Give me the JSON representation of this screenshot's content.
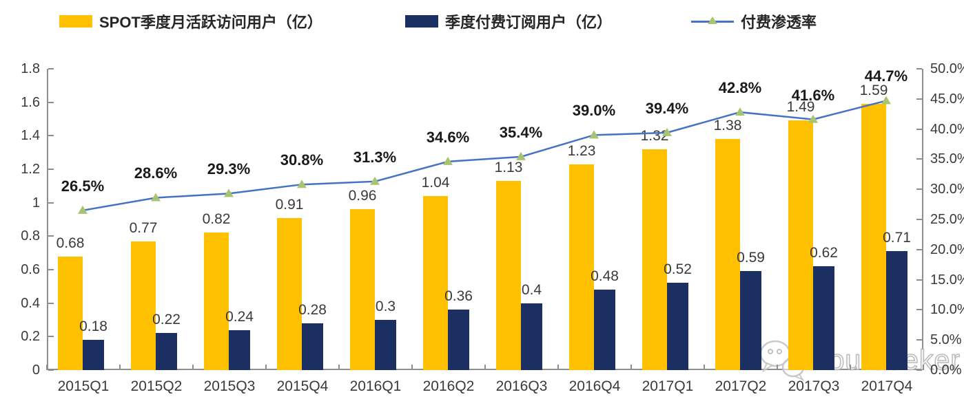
{
  "legend": [
    {
      "label": "SPOT季度月活跃访问用户（亿）",
      "color": "#FFC000",
      "type": "bar"
    },
    {
      "label": "季度付费订阅用户（亿）",
      "color": "#1B2F63",
      "type": "bar"
    },
    {
      "label": "付费渗透率",
      "type": "line",
      "line_color": "#4472C4",
      "marker_color": "#A9C470"
    }
  ],
  "chart_data": {
    "type": "combo-bar-line",
    "categories": [
      "2015Q1",
      "2015Q2",
      "2015Q3",
      "2015Q4",
      "2016Q1",
      "2016Q2",
      "2016Q3",
      "2016Q4",
      "2017Q1",
      "2017Q2",
      "2017Q3",
      "2017Q4"
    ],
    "series": [
      {
        "name": "SPOT季度月活跃访问用户（亿）",
        "type": "bar",
        "axis": "left",
        "color": "#FFC000",
        "values": [
          0.68,
          0.77,
          0.82,
          0.91,
          0.96,
          1.04,
          1.13,
          1.23,
          1.32,
          1.38,
          1.49,
          1.59
        ],
        "labels": [
          "0.68",
          "0.77",
          "0.82",
          "0.91",
          "0.96",
          "1.04",
          "1.13",
          "1.23",
          "1.32",
          "1.38",
          "1.49",
          "1.59"
        ]
      },
      {
        "name": "季度付费订阅用户（亿）",
        "type": "bar",
        "axis": "left",
        "color": "#1B2F63",
        "values": [
          0.18,
          0.22,
          0.24,
          0.28,
          0.3,
          0.36,
          0.4,
          0.48,
          0.52,
          0.59,
          0.62,
          0.71
        ],
        "labels": [
          "0.18",
          "0.22",
          "0.24",
          "0.28",
          "0.3",
          "0.36",
          "0.4",
          "0.48",
          "0.52",
          "0.59",
          "0.62",
          "0.71"
        ]
      },
      {
        "name": "付费渗透率",
        "type": "line",
        "axis": "right",
        "color": "#4472C4",
        "marker_color": "#A9C470",
        "values": [
          26.5,
          28.6,
          29.3,
          30.8,
          31.3,
          34.6,
          35.4,
          39.0,
          39.4,
          42.8,
          41.6,
          44.7
        ],
        "labels": [
          "26.5%",
          "28.6%",
          "29.3%",
          "30.8%",
          "31.3%",
          "34.6%",
          "35.4%",
          "39.0%",
          "39.4%",
          "42.8%",
          "41.6%",
          "44.7%"
        ]
      }
    ],
    "left_axis": {
      "min": 0,
      "max": 1.8,
      "step": 0.2,
      "ticks": [
        "0",
        "0.2",
        "0.4",
        "0.6",
        "0.8",
        "1",
        "1.2",
        "1.4",
        "1.6",
        "1.8"
      ]
    },
    "right_axis": {
      "min": 0,
      "max": 50,
      "step": 5,
      "ticks": [
        "0.0%",
        "5.0%",
        "10.0%",
        "15.0%",
        "20.0%",
        "25.0%",
        "30.0%",
        "35.0%",
        "40.0%",
        "45.0%",
        "50.0%"
      ]
    },
    "grid": false,
    "legend_position": "top"
  },
  "watermark": {
    "text": "Yourseeker",
    "icon": "wechat-icon"
  },
  "colors": {
    "axis": "#8E8E8E",
    "label_text": "#3A3A3A",
    "background": "#FFFFFF"
  }
}
